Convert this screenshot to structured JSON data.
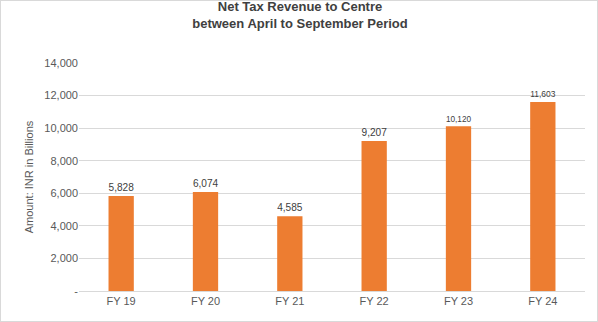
{
  "chart_data": {
    "type": "bar",
    "title": "Net Tax Revenue to Centre\nbetween April to September Period",
    "y_label": "Amount: INR in Billions",
    "categories": [
      "FY 19",
      "FY 20",
      "FY 21",
      "FY 22",
      "FY 23",
      "FY 24"
    ],
    "values": [
      5828,
      6074,
      4585,
      9207,
      10120,
      11603
    ],
    "value_labels": [
      "5,828",
      "6,074",
      "4,585",
      "9,207",
      "10,120",
      "11,603"
    ],
    "color": "#ed7d31",
    "ylim": [
      0,
      14000
    ],
    "yticks": [
      {
        "value": 0,
        "label": "-"
      },
      {
        "value": 2000,
        "label": "2,000"
      },
      {
        "value": 4000,
        "label": "4,000"
      },
      {
        "value": 6000,
        "label": "6,000"
      },
      {
        "value": 8000,
        "label": "8,000"
      },
      {
        "value": 10000,
        "label": "10,000"
      },
      {
        "value": 12000,
        "label": "12,000"
      },
      {
        "value": 14000,
        "label": "14,000"
      }
    ],
    "grid": true,
    "data_labels": true
  }
}
